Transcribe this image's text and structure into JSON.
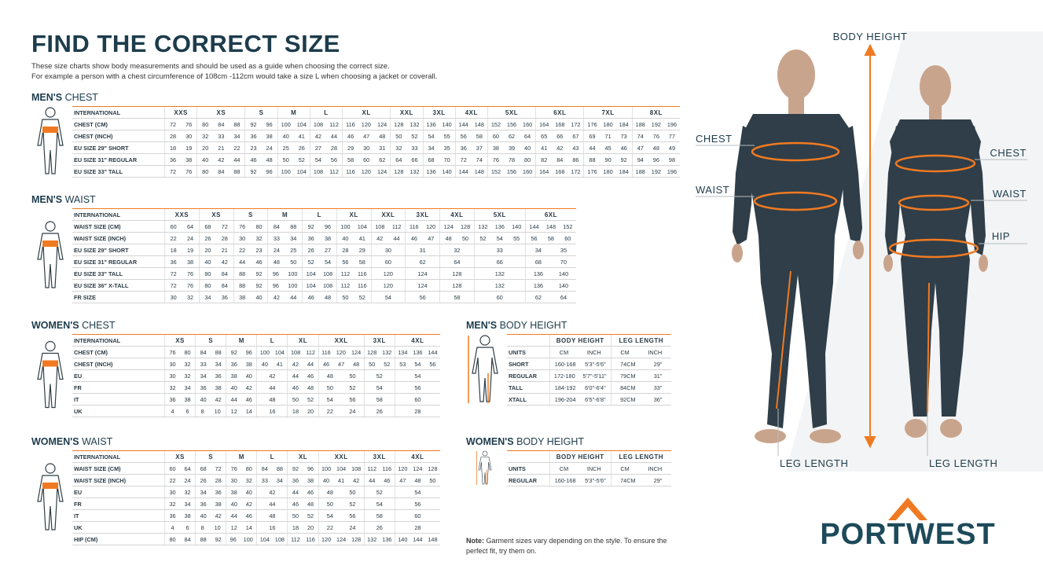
{
  "header": {
    "title": "FIND THE CORRECT SIZE",
    "intro": [
      "These size charts show body measurements and should be used as a guide when choosing the correct size.",
      "For example a person with a chest circumference of 108cm -112cm would take a size L when choosing a jacket or coverall."
    ]
  },
  "mens_chest": {
    "title_bold": "MEN'S",
    "title_rest": "CHEST",
    "header": {
      "label": "INTERNATIONAL",
      "groups": [
        "XXS",
        "XS",
        "S",
        "M",
        "L",
        "XL",
        "XXL",
        "3XL",
        "4XL",
        "5XL",
        "6XL",
        "7XL",
        "8XL"
      ]
    },
    "rows": [
      {
        "label": "CHEST (CM)",
        "cells": [
          [
            72,
            76
          ],
          [
            80,
            84,
            88
          ],
          [
            92,
            96
          ],
          [
            100,
            104
          ],
          [
            108,
            112
          ],
          [
            116,
            120,
            124
          ],
          [
            128,
            132
          ],
          [
            136,
            140
          ],
          [
            144,
            148
          ],
          [
            152,
            156,
            160
          ],
          [
            164,
            168,
            172
          ],
          [
            176,
            180,
            184
          ],
          [
            188,
            192,
            196
          ]
        ]
      },
      {
        "label": "CHEST (INCH)",
        "cells": [
          [
            28,
            30
          ],
          [
            32,
            33,
            34
          ],
          [
            36,
            38
          ],
          [
            40,
            41
          ],
          [
            42,
            44
          ],
          [
            46,
            47,
            48
          ],
          [
            50,
            52
          ],
          [
            54,
            55
          ],
          [
            56,
            58
          ],
          [
            60,
            62,
            64
          ],
          [
            65,
            66,
            67
          ],
          [
            69,
            71,
            73
          ],
          [
            74,
            76,
            77
          ]
        ]
      },
      {
        "label": "EU SIZE 29\" SHORT",
        "cells": [
          [
            18,
            19
          ],
          [
            20,
            21,
            22
          ],
          [
            23,
            24
          ],
          [
            25,
            26
          ],
          [
            27,
            28
          ],
          [
            29,
            30,
            31
          ],
          [
            32,
            33
          ],
          [
            34,
            35
          ],
          [
            36,
            37
          ],
          [
            38,
            39,
            40
          ],
          [
            41,
            42,
            43
          ],
          [
            44,
            45,
            46
          ],
          [
            47,
            48,
            49
          ]
        ]
      },
      {
        "label": "EU SIZE 31\" REGULAR",
        "cells": [
          [
            36,
            38
          ],
          [
            40,
            42,
            44
          ],
          [
            46,
            48
          ],
          [
            50,
            52
          ],
          [
            54,
            56
          ],
          [
            58,
            60,
            62
          ],
          [
            64,
            66
          ],
          [
            68,
            70
          ],
          [
            72,
            74
          ],
          [
            76,
            78,
            80
          ],
          [
            82,
            84,
            86
          ],
          [
            88,
            90,
            92
          ],
          [
            94,
            96,
            98
          ]
        ]
      },
      {
        "label": "EU SIZE 33\" TALL",
        "cells": [
          [
            72,
            76
          ],
          [
            80,
            84,
            88
          ],
          [
            92,
            96
          ],
          [
            100,
            104
          ],
          [
            108,
            112
          ],
          [
            116,
            120,
            124
          ],
          [
            128,
            132
          ],
          [
            136,
            140
          ],
          [
            144,
            148
          ],
          [
            152,
            156,
            160
          ],
          [
            164,
            168,
            172
          ],
          [
            176,
            180,
            184
          ],
          [
            188,
            192,
            196
          ]
        ]
      }
    ]
  },
  "mens_waist": {
    "title_bold": "MEN'S",
    "title_rest": "WAIST",
    "header": {
      "label": "INTERNATIONAL",
      "groups": [
        "XXS",
        "XS",
        "S",
        "M",
        "L",
        "XL",
        "XXL",
        "3XL",
        "4XL",
        "5XL",
        "6XL"
      ]
    },
    "rows": [
      {
        "label": "WAIST SIZE (CM)",
        "cells": [
          [
            60,
            64
          ],
          [
            68,
            72
          ],
          [
            76,
            80
          ],
          [
            84,
            88
          ],
          [
            92,
            96
          ],
          [
            100,
            104
          ],
          [
            108,
            112
          ],
          [
            116,
            120
          ],
          [
            124,
            128
          ],
          [
            132,
            136,
            140
          ],
          [
            144,
            148,
            152
          ]
        ]
      },
      {
        "label": "WAIST SIZE (INCH)",
        "cells": [
          [
            22,
            24
          ],
          [
            26,
            28
          ],
          [
            30,
            32
          ],
          [
            33,
            34
          ],
          [
            36,
            38
          ],
          [
            40,
            41
          ],
          [
            42,
            44
          ],
          [
            46,
            47
          ],
          [
            48,
            50
          ],
          [
            52,
            54,
            55
          ],
          [
            56,
            58,
            60
          ]
        ]
      },
      {
        "label": "EU SIZE 29\" SHORT",
        "cells": [
          [
            18,
            19
          ],
          [
            20,
            21
          ],
          [
            22,
            23
          ],
          [
            24,
            25
          ],
          [
            26,
            27
          ],
          [
            28,
            29
          ],
          [
            30
          ],
          [
            31
          ],
          [
            32
          ],
          [
            33
          ],
          [
            34,
            35
          ]
        ]
      },
      {
        "label": "EU SIZE 31\" REGULAR",
        "cells": [
          [
            36,
            38
          ],
          [
            40,
            42
          ],
          [
            44,
            46
          ],
          [
            48,
            50
          ],
          [
            52,
            54
          ],
          [
            56,
            58
          ],
          [
            60
          ],
          [
            62
          ],
          [
            64
          ],
          [
            66
          ],
          [
            68,
            70
          ]
        ]
      },
      {
        "label": "EU SIZE 33\" TALL",
        "cells": [
          [
            72,
            76
          ],
          [
            80,
            84
          ],
          [
            88,
            92
          ],
          [
            96,
            100
          ],
          [
            104,
            108
          ],
          [
            112,
            116
          ],
          [
            120
          ],
          [
            124
          ],
          [
            128
          ],
          [
            132
          ],
          [
            136,
            140
          ]
        ]
      },
      {
        "label": "EU SIZE 36\" X-TALL",
        "cells": [
          [
            72,
            76
          ],
          [
            80,
            84
          ],
          [
            88,
            92
          ],
          [
            96,
            100
          ],
          [
            104,
            108
          ],
          [
            112,
            116
          ],
          [
            120
          ],
          [
            124
          ],
          [
            128
          ],
          [
            132
          ],
          [
            136,
            140
          ]
        ]
      },
      {
        "label": "FR SIZE",
        "cells": [
          [
            30,
            32
          ],
          [
            34,
            36
          ],
          [
            38,
            40
          ],
          [
            42,
            44
          ],
          [
            46,
            48
          ],
          [
            50,
            52
          ],
          [
            54
          ],
          [
            56
          ],
          [
            58
          ],
          [
            60
          ],
          [
            62,
            64
          ]
        ]
      }
    ]
  },
  "womens_chest": {
    "title_bold": "WOMEN'S",
    "title_rest": "CHEST",
    "header": {
      "label": "INTERNATIONAL",
      "groups": [
        "XS",
        "S",
        "M",
        "L",
        "XL",
        "XXL",
        "3XL",
        "4XL"
      ]
    },
    "rows": [
      {
        "label": "CHEST (CM)",
        "cells": [
          [
            76,
            80
          ],
          [
            84,
            88
          ],
          [
            92,
            96
          ],
          [
            100,
            104
          ],
          [
            108,
            112
          ],
          [
            116,
            120,
            124
          ],
          [
            128,
            132
          ],
          [
            134,
            136,
            144
          ]
        ]
      },
      {
        "label": "CHEST (INCH)",
        "cells": [
          [
            30,
            32
          ],
          [
            33,
            34
          ],
          [
            36,
            38
          ],
          [
            40,
            41
          ],
          [
            42,
            44
          ],
          [
            46,
            47,
            48
          ],
          [
            50,
            52
          ],
          [
            53,
            54,
            56
          ]
        ]
      },
      {
        "label": "EU",
        "cells": [
          [
            30,
            32
          ],
          [
            34,
            36
          ],
          [
            38,
            40
          ],
          [
            42
          ],
          [
            44,
            46
          ],
          [
            48,
            50
          ],
          [
            52
          ],
          [
            54
          ]
        ]
      },
      {
        "label": "FR",
        "cells": [
          [
            32,
            34
          ],
          [
            36,
            38
          ],
          [
            40,
            42
          ],
          [
            44
          ],
          [
            46,
            48
          ],
          [
            50,
            52
          ],
          [
            54
          ],
          [
            56
          ]
        ]
      },
      {
        "label": "IT",
        "cells": [
          [
            36,
            38
          ],
          [
            40,
            42
          ],
          [
            44,
            46
          ],
          [
            48
          ],
          [
            50,
            52
          ],
          [
            54,
            56
          ],
          [
            58
          ],
          [
            60
          ]
        ]
      },
      {
        "label": "UK",
        "cells": [
          [
            4,
            6
          ],
          [
            8,
            10
          ],
          [
            12,
            14
          ],
          [
            16
          ],
          [
            18,
            20
          ],
          [
            22,
            24
          ],
          [
            26
          ],
          [
            28
          ]
        ]
      }
    ]
  },
  "womens_waist": {
    "title_bold": "WOMEN'S",
    "title_rest": "WAIST",
    "header": {
      "label": "INTERNATIONAL",
      "groups": [
        "XS",
        "S",
        "M",
        "L",
        "XL",
        "XXL",
        "3XL",
        "4XL"
      ]
    },
    "rows": [
      {
        "label": "WAIST SIZE (CM)",
        "cells": [
          [
            60,
            64
          ],
          [
            68,
            72
          ],
          [
            76,
            80
          ],
          [
            84,
            88
          ],
          [
            92,
            96
          ],
          [
            100,
            104,
            108
          ],
          [
            112,
            116
          ],
          [
            120,
            124,
            128
          ]
        ]
      },
      {
        "label": "WAIST SIZE (INCH)",
        "cells": [
          [
            22,
            24
          ],
          [
            26,
            28
          ],
          [
            30,
            32
          ],
          [
            33,
            34
          ],
          [
            36,
            38
          ],
          [
            40,
            41,
            42
          ],
          [
            44,
            46
          ],
          [
            47,
            48,
            50
          ]
        ]
      },
      {
        "label": "EU",
        "cells": [
          [
            30,
            32
          ],
          [
            34,
            36
          ],
          [
            38,
            40
          ],
          [
            42
          ],
          [
            44,
            46
          ],
          [
            48,
            50
          ],
          [
            52
          ],
          [
            54
          ]
        ]
      },
      {
        "label": "FR",
        "cells": [
          [
            32,
            34
          ],
          [
            36,
            38
          ],
          [
            40,
            42
          ],
          [
            44
          ],
          [
            46,
            48
          ],
          [
            50,
            52
          ],
          [
            54
          ],
          [
            56
          ]
        ]
      },
      {
        "label": "IT",
        "cells": [
          [
            36,
            38
          ],
          [
            40,
            42
          ],
          [
            44,
            46
          ],
          [
            48
          ],
          [
            50,
            52
          ],
          [
            54,
            56
          ],
          [
            58
          ],
          [
            60
          ]
        ]
      },
      {
        "label": "UK",
        "cells": [
          [
            4,
            6
          ],
          [
            8,
            10
          ],
          [
            12,
            14
          ],
          [
            16
          ],
          [
            18,
            20
          ],
          [
            22,
            24
          ],
          [
            26
          ],
          [
            28
          ]
        ]
      },
      {
        "label": "HIP (CM)",
        "cells": [
          [
            80,
            84
          ],
          [
            88,
            92
          ],
          [
            96,
            100
          ],
          [
            104,
            108
          ],
          [
            112,
            116
          ],
          [
            120,
            124,
            128
          ],
          [
            132,
            136
          ],
          [
            140,
            144,
            148
          ]
        ]
      }
    ]
  },
  "mens_body_height": {
    "title_bold": "MEN'S",
    "title_rest": "BODY HEIGHT",
    "header": {
      "groups": [
        "BODY HEIGHT",
        "LEG LENGTH"
      ]
    },
    "rows": [
      {
        "label": "UNITS",
        "cells": [
          [
            "CM",
            "INCH"
          ],
          [
            "CM",
            "INCH"
          ]
        ]
      },
      {
        "label": "SHORT",
        "cells": [
          [
            "160-168",
            "5'3\"-5'6\""
          ],
          [
            "74CM",
            "29\""
          ]
        ]
      },
      {
        "label": "REGULAR",
        "cells": [
          [
            "172-180",
            "5'7\"-5'11\""
          ],
          [
            "79CM",
            "31\""
          ]
        ]
      },
      {
        "label": "TALL",
        "cells": [
          [
            "184-192",
            "6'0\"-6'4\""
          ],
          [
            "84CM",
            "33\""
          ]
        ]
      },
      {
        "label": "XTALL",
        "cells": [
          [
            "196-204",
            "6'5\"-6'8\""
          ],
          [
            "92CM",
            "36\""
          ]
        ]
      }
    ]
  },
  "womens_body_height": {
    "title_bold": "WOMEN'S",
    "title_rest": "BODY HEIGHT",
    "header": {
      "groups": [
        "BODY HEIGHT",
        "LEG LENGTH"
      ]
    },
    "rows": [
      {
        "label": "UNITS",
        "cells": [
          [
            "CM",
            "INCH"
          ],
          [
            "CM",
            "INCH"
          ]
        ]
      },
      {
        "label": "REGULAR",
        "cells": [
          [
            "160-168",
            "5'3\"-5'6\""
          ],
          [
            "74CM",
            "29\""
          ]
        ]
      }
    ]
  },
  "note": {
    "bold": "Note:",
    "text": "Garment sizes vary depending on the style. To ensure the perfect fit, try them on."
  },
  "figure": {
    "body_height": "BODY HEIGHT",
    "man_chest": "CHEST",
    "man_waist": "WAIST",
    "woman_chest": "CHEST",
    "woman_waist": "WAIST",
    "woman_hip": "HIP",
    "man_leg_length": "LEG LENGTH",
    "woman_leg_length": "LEG LENGTH"
  },
  "logo": "PORTWEST"
}
